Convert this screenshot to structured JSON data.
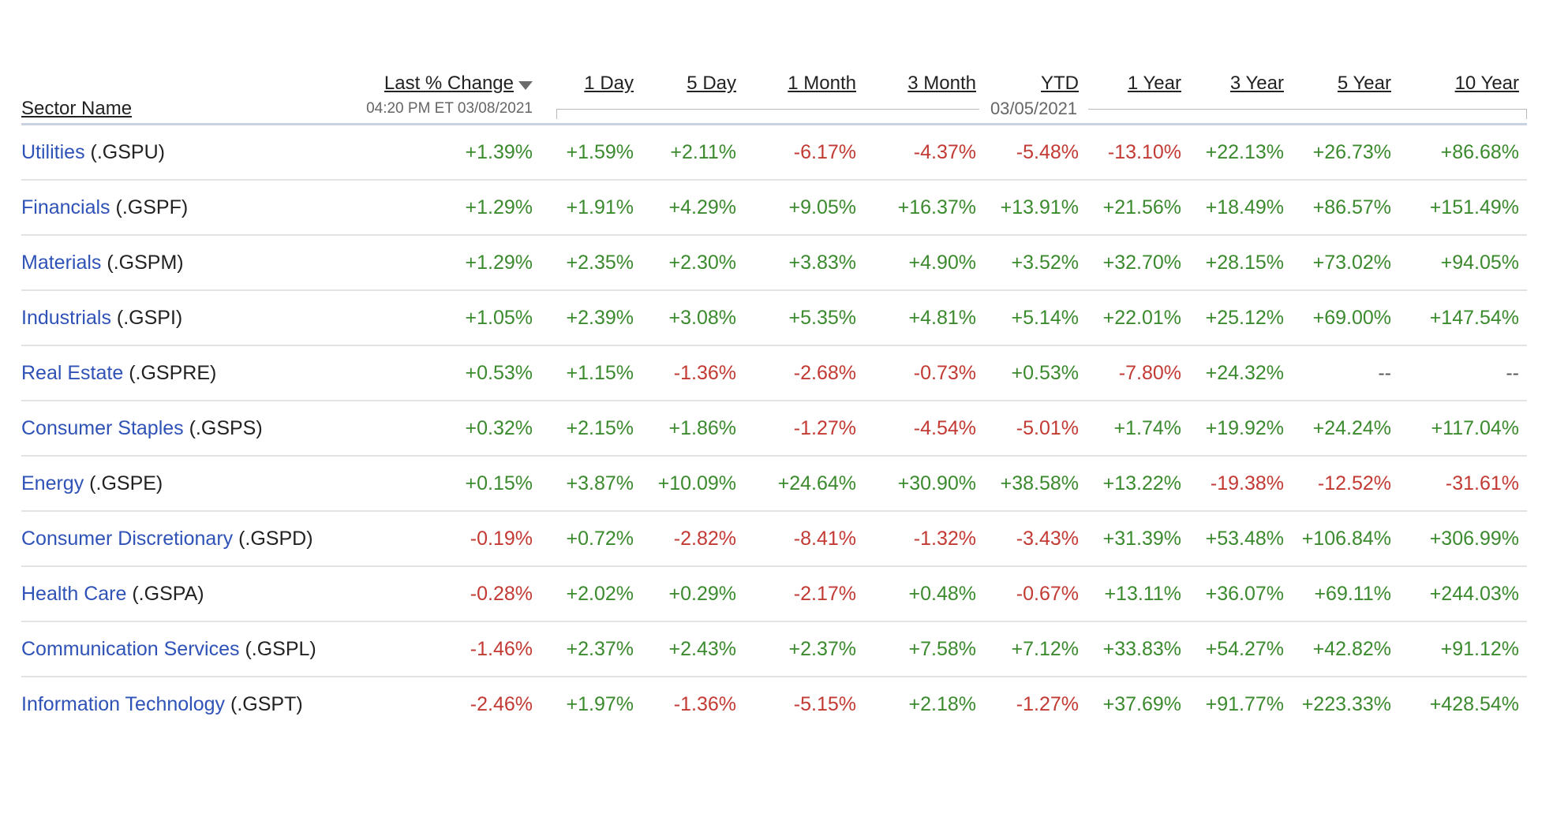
{
  "table": {
    "columns": {
      "sector_name": "Sector Name",
      "last_change": "Last % Change",
      "day1": "1 Day",
      "day5": "5 Day",
      "month1": "1 Month",
      "month3": "3 Month",
      "ytd": "YTD",
      "year1": "1 Year",
      "year3": "3 Year",
      "year5": "5 Year",
      "year10": "10 Year"
    },
    "last_change_timestamp": "04:20 PM ET 03/08/2021",
    "period_date": "03/05/2021",
    "colors": {
      "link": "#2f52b7",
      "positive": "#3b8a2e",
      "negative": "#c23a33"
    },
    "rows": [
      {
        "name": "Utilities",
        "symbol": "(.GSPU)",
        "last": "+1.39%",
        "day1": "+1.59%",
        "day5": "+2.11%",
        "month1": "-6.17%",
        "month3": "-4.37%",
        "ytd": "-5.48%",
        "year1": "-13.10%",
        "year3": "+22.13%",
        "year5": "+26.73%",
        "year10": "+86.68%"
      },
      {
        "name": "Financials",
        "symbol": "(.GSPF)",
        "last": "+1.29%",
        "day1": "+1.91%",
        "day5": "+4.29%",
        "month1": "+9.05%",
        "month3": "+16.37%",
        "ytd": "+13.91%",
        "year1": "+21.56%",
        "year3": "+18.49%",
        "year5": "+86.57%",
        "year10": "+151.49%"
      },
      {
        "name": "Materials",
        "symbol": "(.GSPM)",
        "last": "+1.29%",
        "day1": "+2.35%",
        "day5": "+2.30%",
        "month1": "+3.83%",
        "month3": "+4.90%",
        "ytd": "+3.52%",
        "year1": "+32.70%",
        "year3": "+28.15%",
        "year5": "+73.02%",
        "year10": "+94.05%"
      },
      {
        "name": "Industrials",
        "symbol": "(.GSPI)",
        "last": "+1.05%",
        "day1": "+2.39%",
        "day5": "+3.08%",
        "month1": "+5.35%",
        "month3": "+4.81%",
        "ytd": "+5.14%",
        "year1": "+22.01%",
        "year3": "+25.12%",
        "year5": "+69.00%",
        "year10": "+147.54%"
      },
      {
        "name": "Real Estate",
        "symbol": "(.GSPRE)",
        "last": "+0.53%",
        "day1": "+1.15%",
        "day5": "-1.36%",
        "month1": "-2.68%",
        "month3": "-0.73%",
        "ytd": "+0.53%",
        "year1": "-7.80%",
        "year3": "+24.32%",
        "year5": "--",
        "year10": "--"
      },
      {
        "name": "Consumer Staples",
        "symbol": "(.GSPS)",
        "last": "+0.32%",
        "day1": "+2.15%",
        "day5": "+1.86%",
        "month1": "-1.27%",
        "month3": "-4.54%",
        "ytd": "-5.01%",
        "year1": "+1.74%",
        "year3": "+19.92%",
        "year5": "+24.24%",
        "year10": "+117.04%"
      },
      {
        "name": "Energy",
        "symbol": "(.GSPE)",
        "last": "+0.15%",
        "day1": "+3.87%",
        "day5": "+10.09%",
        "month1": "+24.64%",
        "month3": "+30.90%",
        "ytd": "+38.58%",
        "year1": "+13.22%",
        "year3": "-19.38%",
        "year5": "-12.52%",
        "year10": "-31.61%"
      },
      {
        "name": "Consumer Discretionary",
        "symbol": "(.GSPD)",
        "last": "-0.19%",
        "day1": "+0.72%",
        "day5": "-2.82%",
        "month1": "-8.41%",
        "month3": "-1.32%",
        "ytd": "-3.43%",
        "year1": "+31.39%",
        "year3": "+53.48%",
        "year5": "+106.84%",
        "year10": "+306.99%"
      },
      {
        "name": "Health Care",
        "symbol": "(.GSPA)",
        "last": "-0.28%",
        "day1": "+2.02%",
        "day5": "+0.29%",
        "month1": "-2.17%",
        "month3": "+0.48%",
        "ytd": "-0.67%",
        "year1": "+13.11%",
        "year3": "+36.07%",
        "year5": "+69.11%",
        "year10": "+244.03%"
      },
      {
        "name": "Communication Services",
        "symbol": "(.GSPL)",
        "last": "-1.46%",
        "day1": "+2.37%",
        "day5": "+2.43%",
        "month1": "+2.37%",
        "month3": "+7.58%",
        "ytd": "+7.12%",
        "year1": "+33.83%",
        "year3": "+54.27%",
        "year5": "+42.82%",
        "year10": "+91.12%"
      },
      {
        "name": "Information Technology",
        "symbol": "(.GSPT)",
        "last": "-2.46%",
        "day1": "+1.97%",
        "day5": "-1.36%",
        "month1": "-5.15%",
        "month3": "+2.18%",
        "ytd": "-1.27%",
        "year1": "+37.69%",
        "year3": "+91.77%",
        "year5": "+223.33%",
        "year10": "+428.54%"
      }
    ]
  }
}
